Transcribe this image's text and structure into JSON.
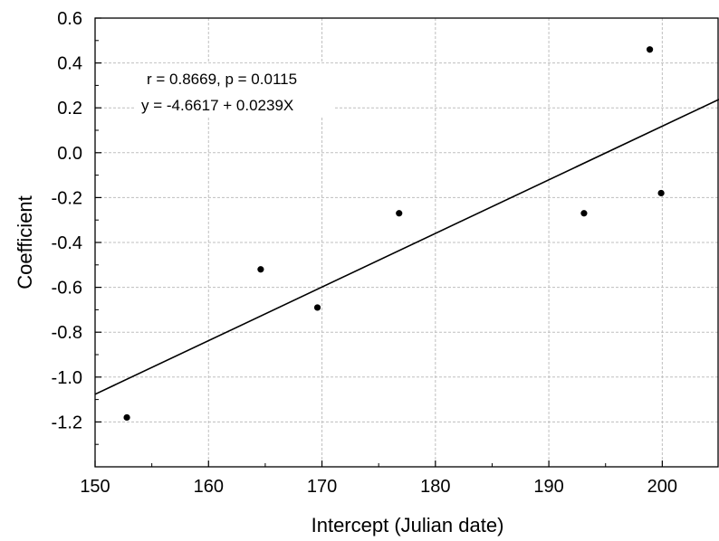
{
  "chart_data": {
    "type": "scatter",
    "xlabel": "Intercept (Julian date)",
    "ylabel": "Coefficient",
    "xlim": [
      150,
      205
    ],
    "ylim": [
      -1.4,
      0.6
    ],
    "x_ticks": [
      150,
      160,
      170,
      180,
      190,
      200
    ],
    "x_tick_labels": [
      "150",
      "160",
      "170",
      "180",
      "190",
      "200"
    ],
    "y_ticks": [
      0.6,
      0.4,
      0.2,
      0.0,
      -0.2,
      -0.4,
      -0.6,
      -0.8,
      -1.0,
      -1.2
    ],
    "y_tick_labels": [
      "0.6",
      "0.4",
      "0.2",
      "0.0",
      "-0.2",
      "-0.4",
      "-0.6",
      "-0.8",
      "-1.0",
      "-1.2"
    ],
    "grid": true,
    "points": [
      {
        "x": 152.8,
        "y": -1.18
      },
      {
        "x": 164.6,
        "y": -0.52
      },
      {
        "x": 169.6,
        "y": -0.69
      },
      {
        "x": 176.8,
        "y": -0.27
      },
      {
        "x": 193.1,
        "y": -0.27
      },
      {
        "x": 198.9,
        "y": 0.46
      },
      {
        "x": 199.9,
        "y": -0.18
      }
    ],
    "fit_line": {
      "intercept": -4.6617,
      "slope": 0.0239
    },
    "annotations": [
      "r = 0.8669, p = 0.0115",
      "y = -4.6617 + 0.0239X"
    ],
    "colors": {
      "points": "#000000",
      "line": "#000000",
      "grid": "#bfbfbf"
    }
  }
}
